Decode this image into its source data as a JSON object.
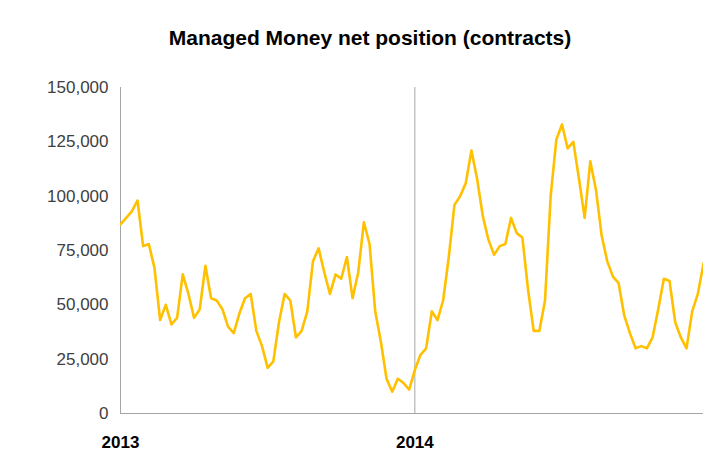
{
  "chart_data": {
    "type": "line",
    "title": "Managed Money net position (contracts)",
    "categories": [
      "2013",
      null,
      null,
      null,
      null,
      null,
      null,
      null,
      null,
      null,
      null,
      null,
      null,
      null,
      null,
      null,
      null,
      null,
      null,
      null,
      null,
      null,
      null,
      null,
      null,
      null,
      null,
      null,
      null,
      null,
      null,
      null,
      null,
      null,
      null,
      null,
      null,
      null,
      null,
      null,
      null,
      null,
      null,
      null,
      null,
      null,
      null,
      null,
      null,
      null,
      null,
      null,
      "2014",
      null,
      null,
      null,
      null,
      null,
      null,
      null,
      null,
      null,
      null,
      null,
      null,
      null,
      null,
      null,
      null,
      null,
      null,
      null,
      null,
      null,
      null,
      null,
      null,
      null,
      null,
      null,
      null,
      null,
      null,
      null,
      null,
      null,
      null,
      null,
      null,
      null,
      null,
      null,
      null,
      null,
      null,
      null,
      null,
      null,
      null,
      null,
      null,
      null,
      null,
      null
    ],
    "values": [
      87000,
      90000,
      93000,
      98000,
      77000,
      78000,
      67000,
      43000,
      50000,
      41000,
      44000,
      64000,
      55000,
      44000,
      48000,
      68000,
      53000,
      52000,
      48000,
      40000,
      37000,
      46000,
      53000,
      55000,
      38000,
      31000,
      21000,
      24000,
      42000,
      55000,
      52000,
      35000,
      38000,
      47000,
      70000,
      76000,
      65000,
      55000,
      64000,
      62000,
      72000,
      53000,
      65000,
      88000,
      78000,
      47000,
      33000,
      16000,
      10000,
      16000,
      14000,
      11000,
      20000,
      27000,
      30000,
      47000,
      43000,
      52000,
      72000,
      96000,
      100000,
      106000,
      121000,
      108000,
      91000,
      80000,
      73000,
      77000,
      78000,
      90000,
      83000,
      81000,
      57000,
      38000,
      38000,
      52000,
      100000,
      126000,
      133000,
      122000,
      125000,
      108000,
      90000,
      116000,
      103000,
      82000,
      70000,
      63000,
      60000,
      45000,
      37000,
      30000,
      31000,
      30000,
      35000,
      48000,
      62000,
      61000,
      42000,
      35000,
      30000,
      47000,
      55000,
      69000
    ],
    "color": "#ffc000",
    "ylim": [
      0,
      150000
    ],
    "yticks": [
      0,
      {
        "value": 25000,
        "label": "25,000"
      },
      {
        "value": 50000,
        "label": "50,000"
      },
      {
        "value": 75000,
        "label": "75,000"
      },
      {
        "value": 100000,
        "label": "100,000"
      },
      {
        "value": 125000,
        "label": "125,000"
      },
      {
        "value": 150000,
        "label": "150,000"
      }
    ],
    "grid": true
  }
}
